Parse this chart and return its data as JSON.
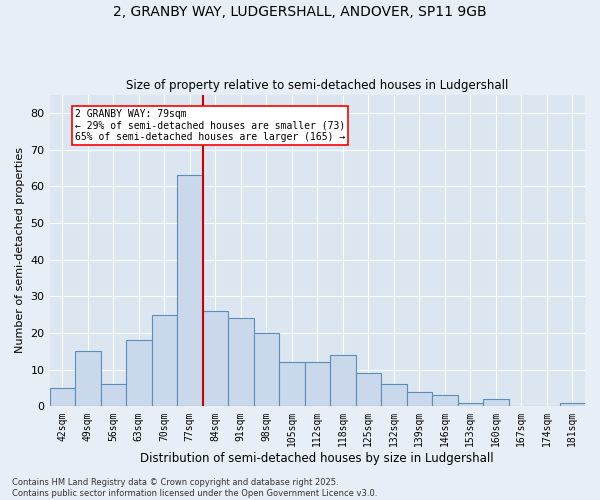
{
  "title_line1": "2, GRANBY WAY, LUDGERSHALL, ANDOVER, SP11 9GB",
  "title_line2": "Size of property relative to semi-detached houses in Ludgershall",
  "xlabel": "Distribution of semi-detached houses by size in Ludgershall",
  "ylabel": "Number of semi-detached properties",
  "footnote_line1": "Contains HM Land Registry data © Crown copyright and database right 2025.",
  "footnote_line2": "Contains public sector information licensed under the Open Government Licence v3.0.",
  "annotation_line1": "2 GRANBY WAY: 79sqm",
  "annotation_line2": "← 29% of semi-detached houses are smaller (73)",
  "annotation_line3": "65% of semi-detached houses are larger (165) →",
  "bin_labels": [
    "42sqm",
    "49sqm",
    "56sqm",
    "63sqm",
    "70sqm",
    "77sqm",
    "84sqm",
    "91sqm",
    "98sqm",
    "105sqm",
    "112sqm",
    "118sqm",
    "125sqm",
    "132sqm",
    "139sqm",
    "146sqm",
    "153sqm",
    "160sqm",
    "167sqm",
    "174sqm",
    "181sqm"
  ],
  "bar_values": [
    5,
    15,
    6,
    18,
    25,
    63,
    26,
    24,
    20,
    12,
    12,
    14,
    9,
    6,
    4,
    3,
    1,
    2,
    0,
    0,
    1
  ],
  "bar_color": "#c9d9eb",
  "bar_edge_color": "#5b8db8",
  "bg_color": "#e8eef5",
  "plot_bg_color": "#dce6f0",
  "grid_color": "#ffffff",
  "vline_x": 5.5,
  "vline_color": "#cc0000",
  "ylim": [
    0,
    85
  ],
  "yticks": [
    0,
    10,
    20,
    30,
    40,
    50,
    60,
    70,
    80
  ]
}
